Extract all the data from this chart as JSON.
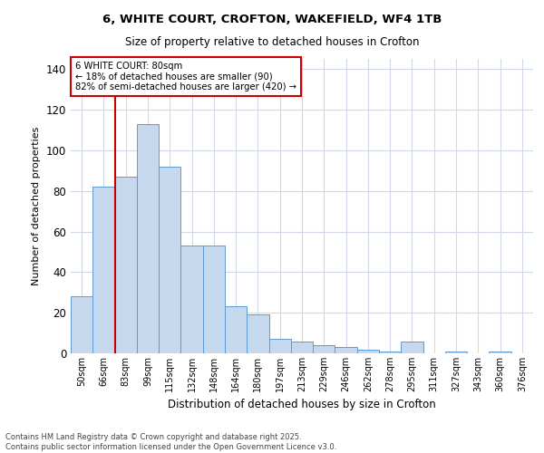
{
  "title_line1": "6, WHITE COURT, CROFTON, WAKEFIELD, WF4 1TB",
  "title_line2": "Size of property relative to detached houses in Crofton",
  "xlabel": "Distribution of detached houses by size in Crofton",
  "ylabel": "Number of detached properties",
  "footer_line1": "Contains HM Land Registry data © Crown copyright and database right 2025.",
  "footer_line2": "Contains public sector information licensed under the Open Government Licence v3.0.",
  "categories": [
    "50sqm",
    "66sqm",
    "83sqm",
    "99sqm",
    "115sqm",
    "132sqm",
    "148sqm",
    "164sqm",
    "180sqm",
    "197sqm",
    "213sqm",
    "229sqm",
    "246sqm",
    "262sqm",
    "278sqm",
    "295sqm",
    "311sqm",
    "327sqm",
    "343sqm",
    "360sqm",
    "376sqm"
  ],
  "values": [
    28,
    82,
    87,
    113,
    92,
    53,
    53,
    23,
    19,
    7,
    6,
    4,
    3,
    2,
    1,
    6,
    0,
    1,
    0,
    1,
    0
  ],
  "bar_color": "#c5d8ed",
  "bar_edge_color": "#5b9bd5",
  "vline_x": 1.5,
  "annotation_title": "6 WHITE COURT: 80sqm",
  "annotation_line2": "← 18% of detached houses are smaller (90)",
  "annotation_line3": "82% of semi-detached houses are larger (420) →",
  "vline_color": "#cc0000",
  "annotation_box_edge_color": "#cc0000",
  "ylim": [
    0,
    145
  ],
  "yticks": [
    0,
    20,
    40,
    60,
    80,
    100,
    120,
    140
  ],
  "background_color": "#ffffff",
  "grid_color": "#d0d8e8"
}
